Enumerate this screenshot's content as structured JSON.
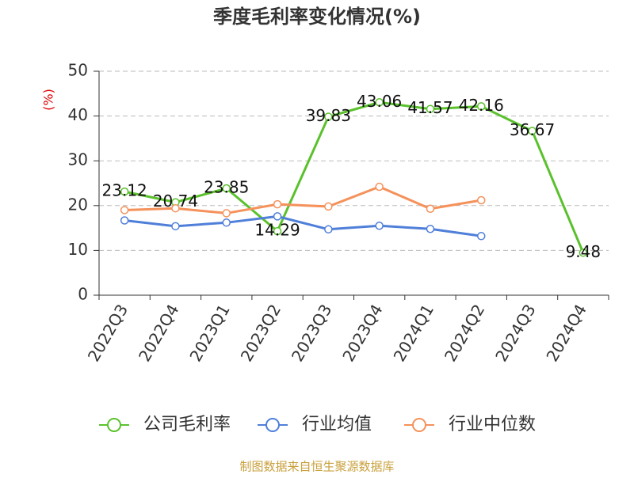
{
  "chart_data": {
    "type": "line",
    "title": "季度毛利率变化情况(%)",
    "y_label": "(%)",
    "categories": [
      "2022Q3",
      "2022Q4",
      "2023Q1",
      "2023Q2",
      "2023Q3",
      "2023Q4",
      "2024Q1",
      "2024Q2",
      "2024Q3",
      "2024Q4"
    ],
    "series": [
      {
        "name": "公司毛利率",
        "color": "#5ac12c",
        "values": [
          23.12,
          20.74,
          23.85,
          14.29,
          39.83,
          43.06,
          41.57,
          42.16,
          36.67,
          9.48
        ],
        "show_labels": true
      },
      {
        "name": "行业均值",
        "color": "#4f7fd9",
        "values": [
          16.7,
          15.4,
          16.2,
          17.6,
          14.7,
          15.5,
          14.8,
          13.2,
          null,
          null
        ]
      },
      {
        "name": "行业中位数",
        "color": "#f5915a",
        "values": [
          19.0,
          19.4,
          18.3,
          20.3,
          19.8,
          24.2,
          19.3,
          21.2,
          null,
          null
        ]
      }
    ],
    "ylim": [
      0,
      50
    ],
    "yticks": [
      0,
      10,
      20,
      30,
      40,
      50
    ],
    "grid": true,
    "legend": "bottom",
    "source": "制图数据来自恒生聚源数据库"
  }
}
